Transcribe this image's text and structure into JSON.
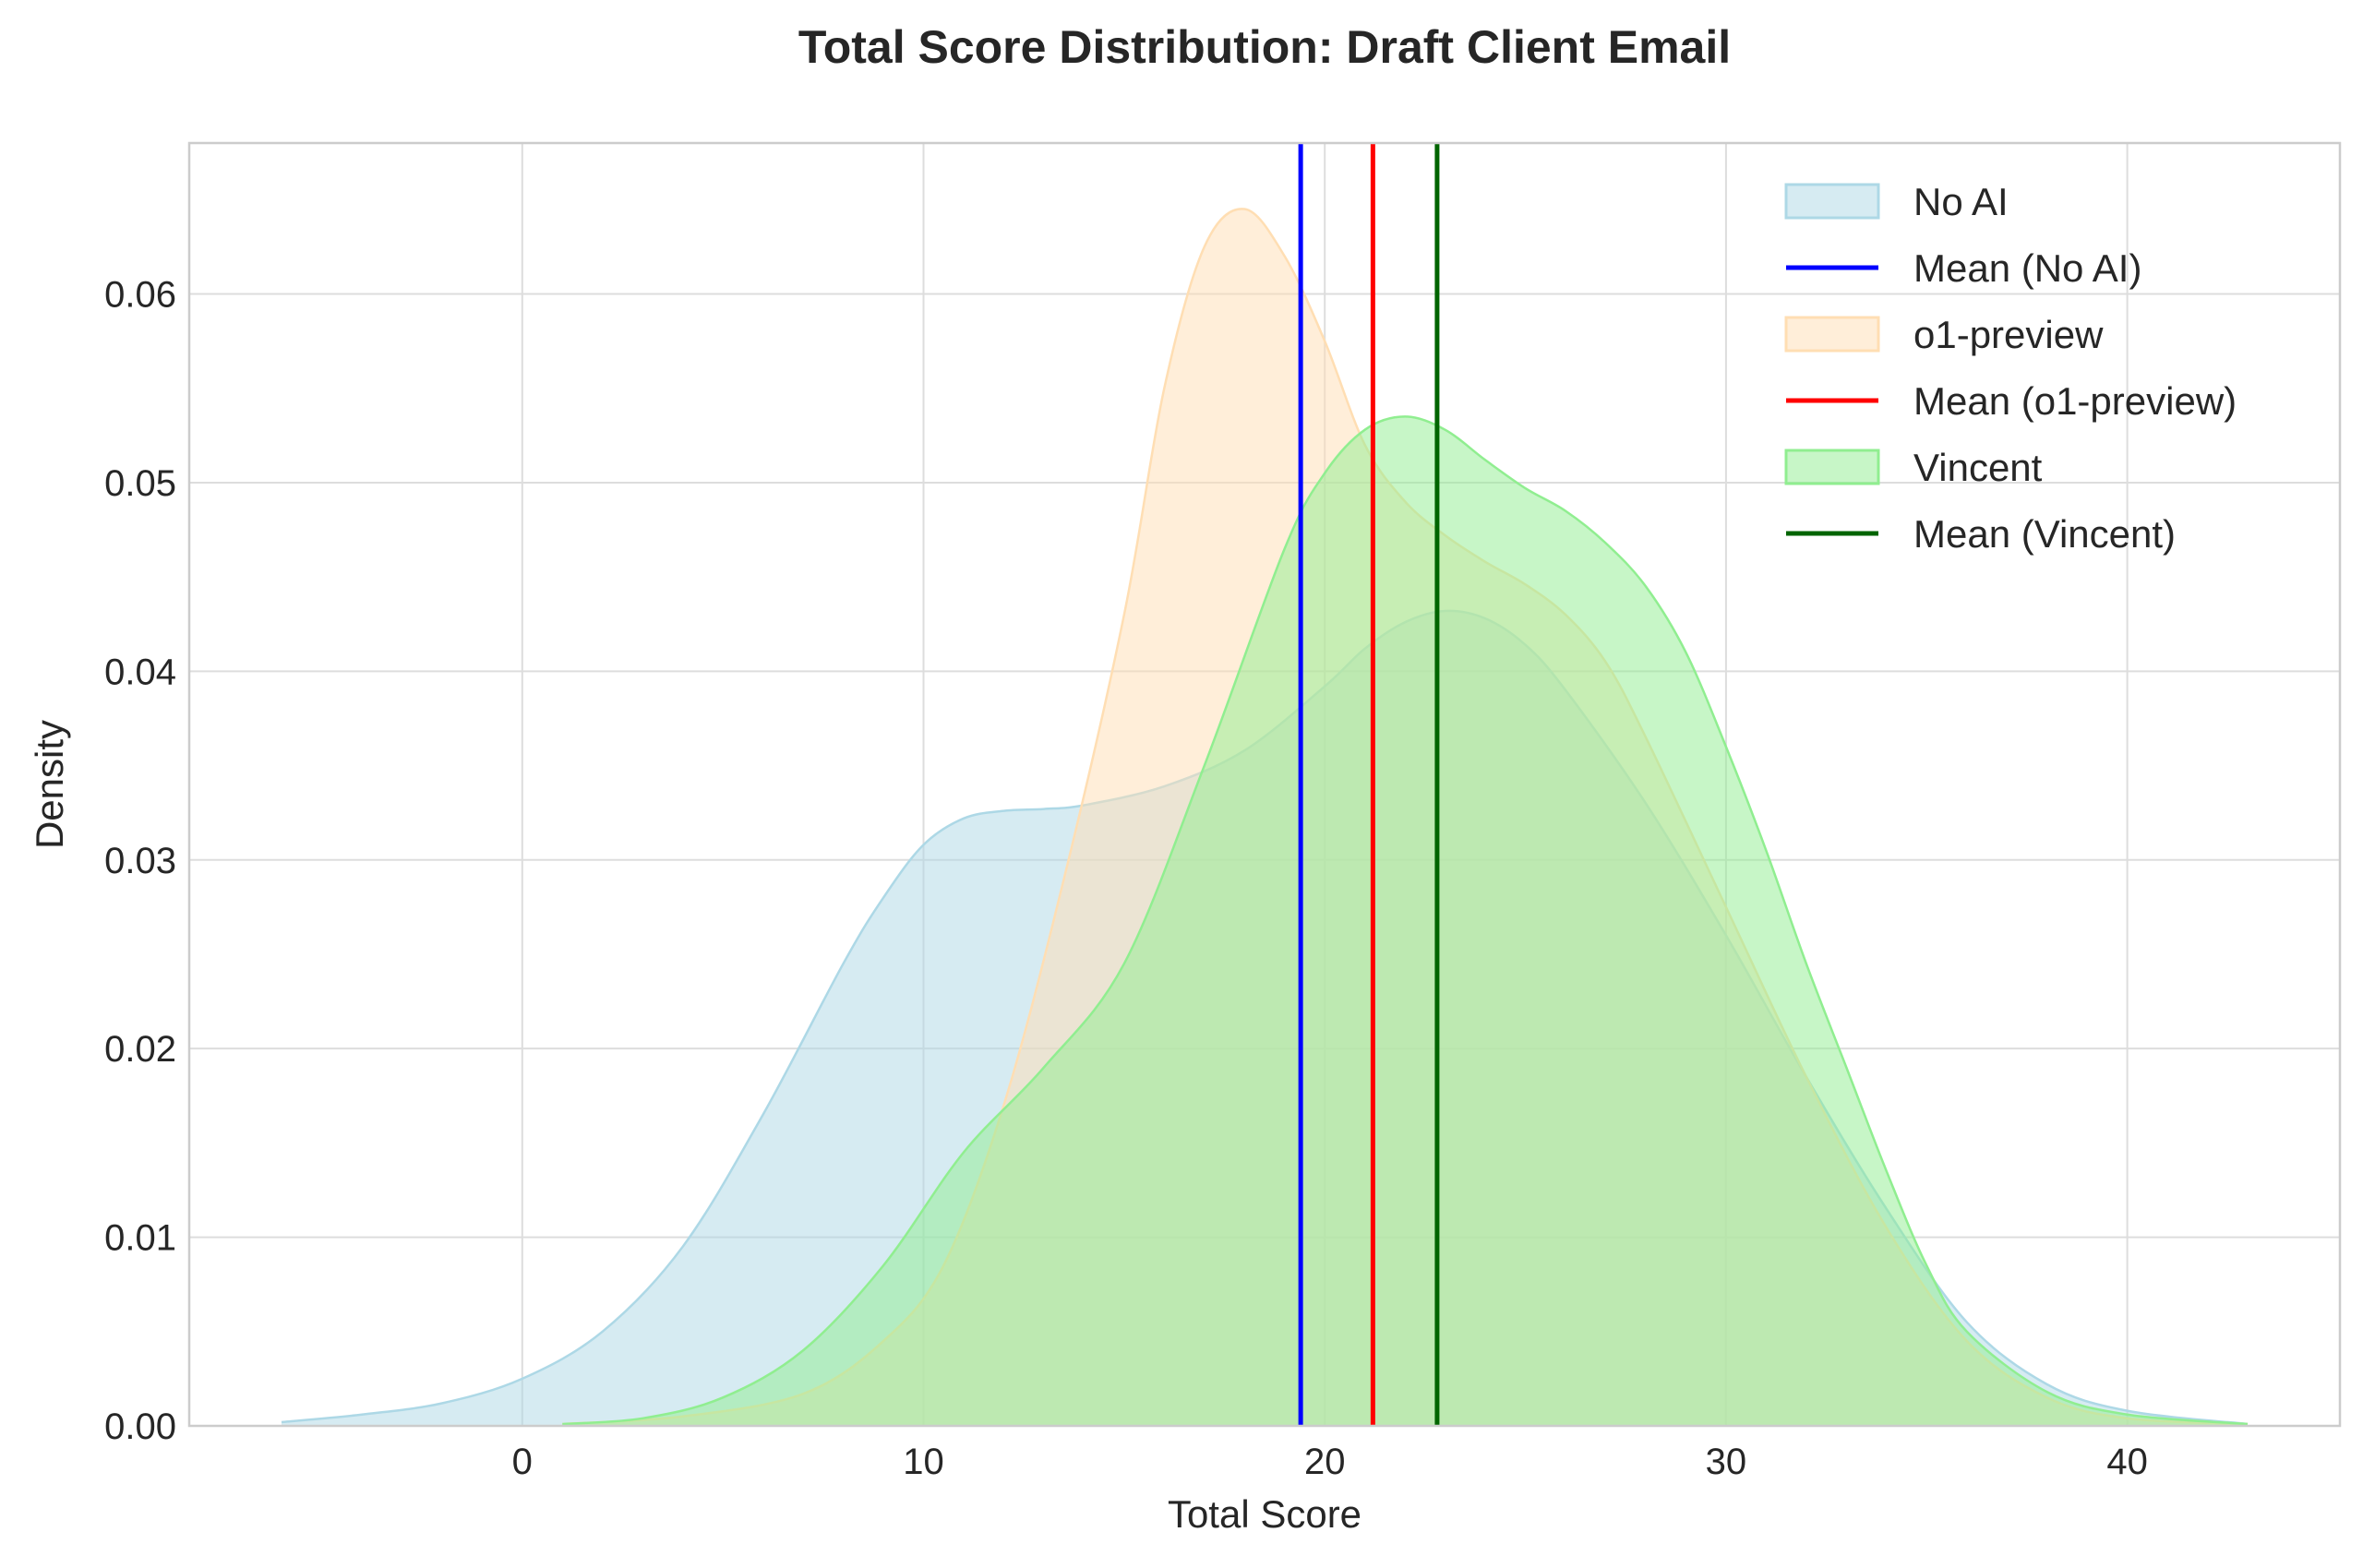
{
  "chart_data": {
    "type": "area",
    "title": "Total Score Distribution: Draft Client Email",
    "xlabel": "Total Score",
    "ylabel": "Density",
    "xlim": [
      -8.3,
      45.3
    ],
    "ylim": [
      0,
      0.068
    ],
    "xticks": [
      0,
      10,
      20,
      30,
      40
    ],
    "xtick_labels": [
      "0",
      "10",
      "20",
      "30",
      "40"
    ],
    "yticks": [
      0,
      0.01,
      0.02,
      0.03,
      0.04,
      0.05,
      0.06
    ],
    "ytick_labels": [
      "0.00",
      "0.01",
      "0.02",
      "0.03",
      "0.04",
      "0.05",
      "0.06"
    ],
    "grid": true,
    "legend_position": "top-right",
    "series": [
      {
        "name": "No AI",
        "fill": "#add8e6",
        "points": [
          [
            -6,
            0.0002
          ],
          [
            -4,
            0.0006
          ],
          [
            -2,
            0.0012
          ],
          [
            0,
            0.0025
          ],
          [
            2,
            0.005
          ],
          [
            4,
            0.0095
          ],
          [
            6,
            0.0165
          ],
          [
            8,
            0.0245
          ],
          [
            9,
            0.028
          ],
          [
            10,
            0.0308
          ],
          [
            11,
            0.0322
          ],
          [
            12,
            0.0326
          ],
          [
            13,
            0.0327
          ],
          [
            14,
            0.0329
          ],
          [
            16,
            0.0339
          ],
          [
            18,
            0.0358
          ],
          [
            20,
            0.0392
          ],
          [
            21,
            0.0412
          ],
          [
            22,
            0.0426
          ],
          [
            23,
            0.0432
          ],
          [
            24,
            0.0428
          ],
          [
            25,
            0.0414
          ],
          [
            26,
            0.039
          ],
          [
            28,
            0.033
          ],
          [
            30,
            0.026
          ],
          [
            32,
            0.0185
          ],
          [
            34,
            0.0115
          ],
          [
            36,
            0.0055
          ],
          [
            38,
            0.0022
          ],
          [
            40,
            0.0008
          ],
          [
            43,
            0.0001
          ]
        ]
      },
      {
        "name": "o1-preview",
        "fill": "#ffdeb3",
        "points": [
          [
            1,
            0.0001
          ],
          [
            4,
            0.0005
          ],
          [
            7,
            0.0017
          ],
          [
            9,
            0.0045
          ],
          [
            10.5,
            0.0085
          ],
          [
            12,
            0.017
          ],
          [
            13.5,
            0.029
          ],
          [
            15,
            0.043
          ],
          [
            16,
            0.055
          ],
          [
            17,
            0.0625
          ],
          [
            18,
            0.0645
          ],
          [
            19,
            0.062
          ],
          [
            20,
            0.0575
          ],
          [
            21,
            0.052
          ],
          [
            22,
            0.049
          ],
          [
            23,
            0.0472
          ],
          [
            24,
            0.0458
          ],
          [
            25,
            0.0446
          ],
          [
            26,
            0.043
          ],
          [
            27,
            0.0405
          ],
          [
            28,
            0.0365
          ],
          [
            30,
            0.0275
          ],
          [
            32,
            0.0185
          ],
          [
            34,
            0.0105
          ],
          [
            36,
            0.0045
          ],
          [
            38,
            0.0015
          ],
          [
            40,
            0.0004
          ],
          [
            43,
            0.0001
          ]
        ]
      },
      {
        "name": "Vincent",
        "fill": "#90ee90",
        "points": [
          [
            1,
            0.0001
          ],
          [
            3,
            0.0004
          ],
          [
            5,
            0.0015
          ],
          [
            7,
            0.004
          ],
          [
            9,
            0.0085
          ],
          [
            11,
            0.0145
          ],
          [
            13,
            0.019
          ],
          [
            15,
            0.0245
          ],
          [
            17,
            0.035
          ],
          [
            19,
            0.0465
          ],
          [
            20,
            0.0505
          ],
          [
            21,
            0.0528
          ],
          [
            22,
            0.0535
          ],
          [
            23,
            0.0528
          ],
          [
            24,
            0.0512
          ],
          [
            25,
            0.0497
          ],
          [
            26,
            0.0485
          ],
          [
            27,
            0.0468
          ],
          [
            28,
            0.0445
          ],
          [
            29,
            0.041
          ],
          [
            30,
            0.036
          ],
          [
            31,
            0.0305
          ],
          [
            32,
            0.0245
          ],
          [
            33,
            0.019
          ],
          [
            34,
            0.0135
          ],
          [
            35,
            0.0085
          ],
          [
            36,
            0.005
          ],
          [
            38,
            0.0018
          ],
          [
            40,
            0.0006
          ],
          [
            43,
            0.0001
          ]
        ]
      }
    ],
    "mean_lines": [
      {
        "name": "Mean (No AI)",
        "x": 19.4,
        "color": "#0000ff"
      },
      {
        "name": "Mean (o1-preview)",
        "x": 21.2,
        "color": "#ff0000"
      },
      {
        "name": "Mean (Vincent)",
        "x": 22.8,
        "color": "#006400"
      }
    ],
    "legend": [
      {
        "label": "No AI",
        "kind": "patch",
        "color": "#add8e6"
      },
      {
        "label": "Mean (No AI)",
        "kind": "line",
        "color": "#0000ff"
      },
      {
        "label": "o1-preview",
        "kind": "patch",
        "color": "#ffdeb3"
      },
      {
        "label": "Mean (o1-preview)",
        "kind": "line",
        "color": "#ff0000"
      },
      {
        "label": "Vincent",
        "kind": "patch",
        "color": "#90ee90"
      },
      {
        "label": "Mean (Vincent)",
        "kind": "line",
        "color": "#006400"
      }
    ]
  }
}
